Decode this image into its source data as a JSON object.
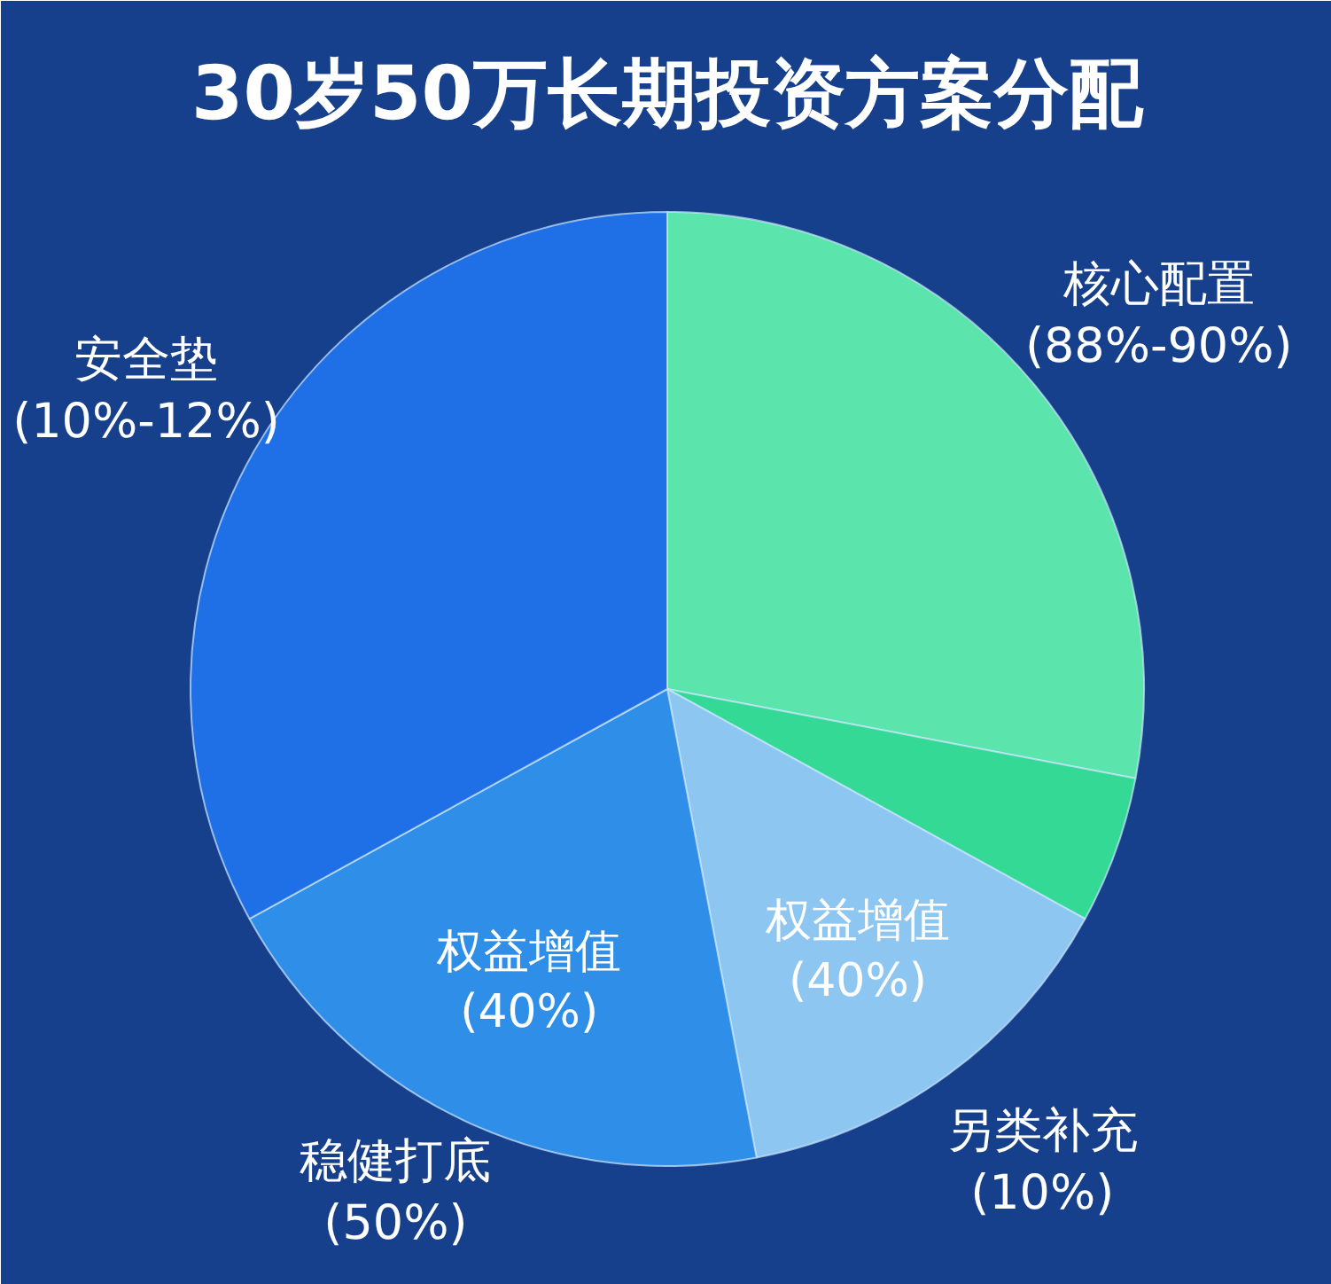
{
  "chart_data": {
    "type": "pie",
    "title": "30岁50万长期投资方案分配",
    "categories": [
      "核心配置\n(88%-90%)",
      null,
      "另类补充\n(10%)",
      "稳健打底\n(50%)",
      "安全垫\n(10%-12%)"
    ],
    "values": [
      28,
      5,
      14,
      20,
      33
    ],
    "colors": [
      "#5be5ad",
      "#34d996",
      "#8ec6f2",
      "#2f8ee8",
      "#1f6fe6"
    ],
    "annotations": [
      {
        "text": "权益增值\n(40%)",
        "x": "稳健打底\n(50%)"
      },
      {
        "text": "权益增值\n(40%)",
        "x": "另类补充\n(10%)"
      }
    ]
  }
}
